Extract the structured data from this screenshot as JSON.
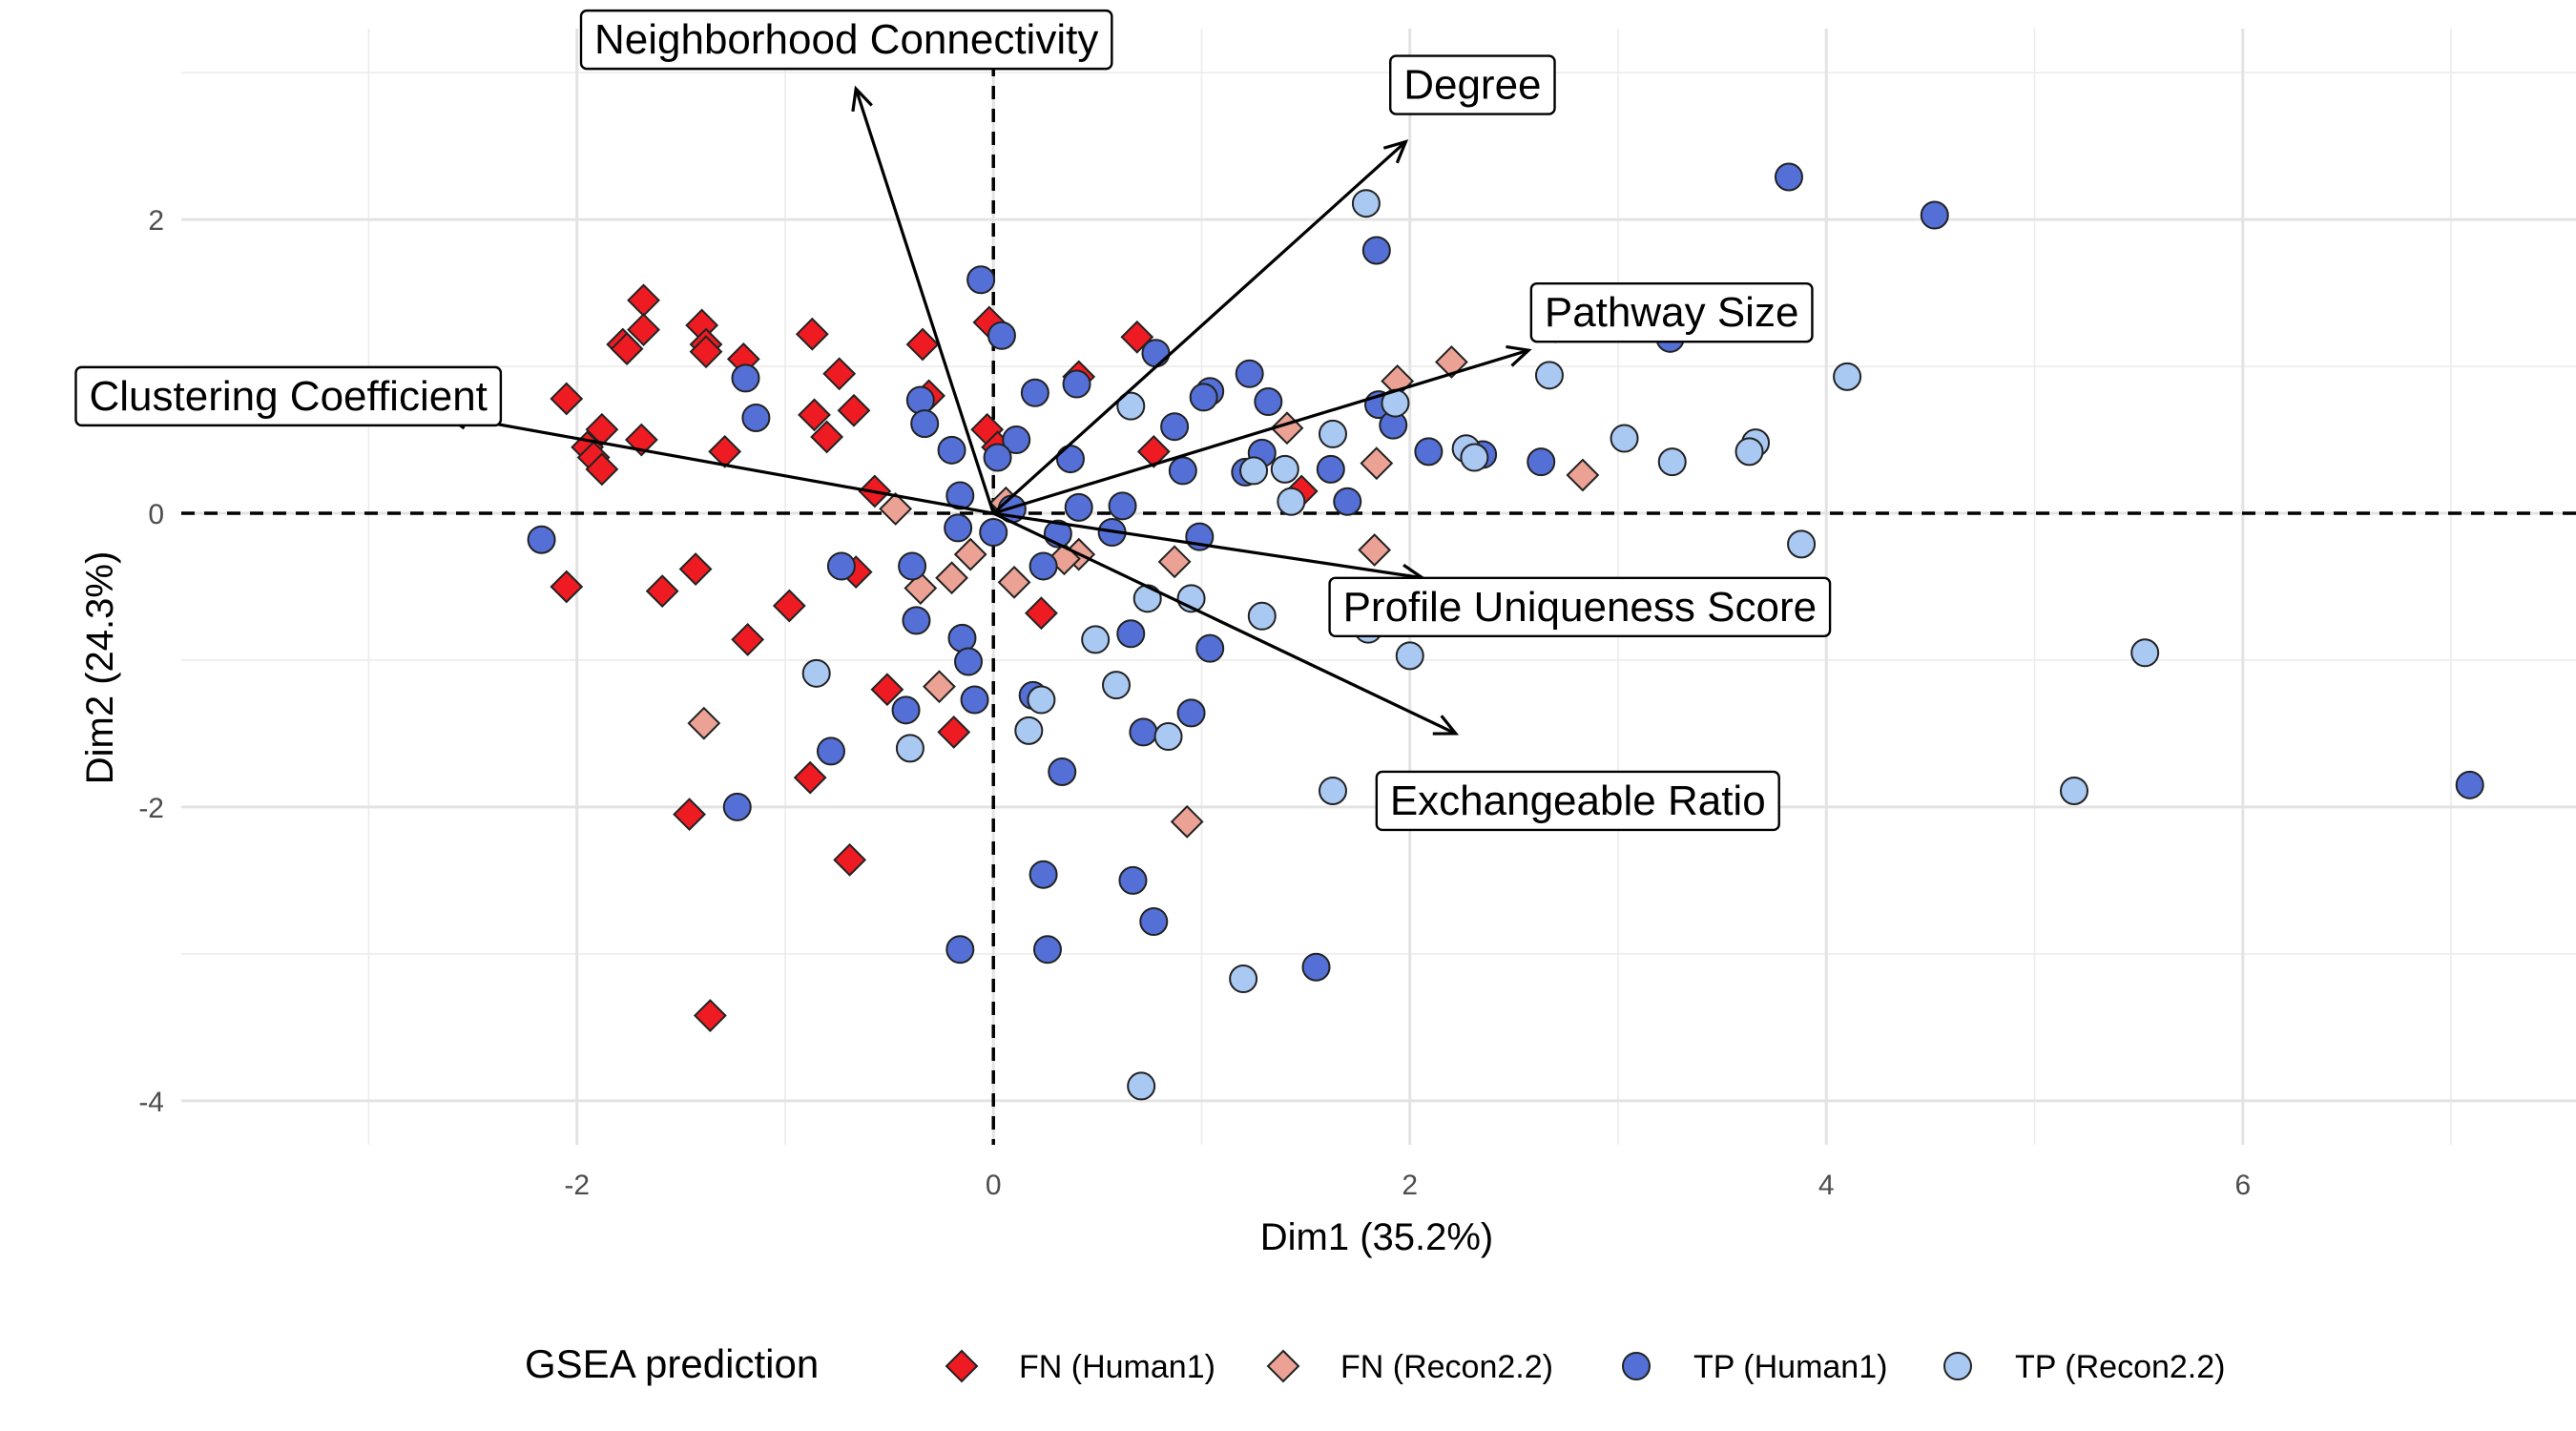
{
  "chart_data": {
    "type": "scatter",
    "xlabel": "Dim1 (35.2%)",
    "ylabel": "Dim2 (24.3%)",
    "xlim": [
      -3.9,
      7.6
    ],
    "ylim": [
      -4.3,
      3.3
    ],
    "x_ticks": [
      -2,
      0,
      2,
      4,
      6
    ],
    "y_ticks": [
      -4,
      -2,
      0,
      2
    ],
    "grid": true,
    "legend_position": "bottom",
    "legend_title": "GSEA prediction",
    "colors": {
      "FN (Human1)": "#ee1c22",
      "FN (Recon2.2)": "#eba294",
      "TP (Human1)": "#5470d6",
      "TP (Recon2.2)": "#a9c8f2"
    },
    "series": [
      {
        "name": "FN (Human1)",
        "shape": "diamond",
        "color": "#ee1c22",
        "points": [
          [
            -1.68,
            1.45
          ],
          [
            -1.4,
            1.28
          ],
          [
            -1.68,
            1.25
          ],
          [
            -1.78,
            1.15
          ],
          [
            -1.76,
            1.12
          ],
          [
            -1.38,
            1.15
          ],
          [
            -1.38,
            1.1
          ],
          [
            -1.2,
            1.05
          ],
          [
            -0.87,
            1.22
          ],
          [
            -0.74,
            0.95
          ],
          [
            -0.34,
            1.15
          ],
          [
            -0.02,
            1.3
          ],
          [
            0.41,
            0.93
          ],
          [
            0.69,
            1.2
          ],
          [
            -2.05,
            0.78
          ],
          [
            -1.88,
            0.57
          ],
          [
            -1.95,
            0.45
          ],
          [
            -1.92,
            0.38
          ],
          [
            -1.88,
            0.3
          ],
          [
            -1.69,
            0.5
          ],
          [
            -1.29,
            0.42
          ],
          [
            -0.86,
            0.67
          ],
          [
            -0.8,
            0.52
          ],
          [
            -0.67,
            0.7
          ],
          [
            -0.31,
            0.8
          ],
          [
            -0.03,
            0.57
          ],
          [
            0.02,
            0.45
          ],
          [
            0.77,
            0.42
          ],
          [
            -0.57,
            0.15
          ],
          [
            1.48,
            0.15
          ],
          [
            -2.05,
            -0.5
          ],
          [
            -1.59,
            -0.53
          ],
          [
            -1.43,
            -0.38
          ],
          [
            -1.18,
            -0.86
          ],
          [
            -0.98,
            -0.63
          ],
          [
            -0.66,
            -0.4
          ],
          [
            -0.51,
            -1.2
          ],
          [
            0.23,
            -0.68
          ],
          [
            -0.19,
            -1.49
          ],
          [
            -0.88,
            -1.8
          ],
          [
            -1.46,
            -2.05
          ],
          [
            -0.69,
            -2.36
          ],
          [
            -1.36,
            -3.42
          ]
        ]
      },
      {
        "name": "FN (Recon2.2)",
        "shape": "diamond",
        "color": "#eba294",
        "points": [
          [
            2.7,
            1.27
          ],
          [
            2.2,
            1.03
          ],
          [
            1.94,
            0.9
          ],
          [
            1.41,
            0.58
          ],
          [
            1.84,
            0.34
          ],
          [
            2.83,
            0.26
          ],
          [
            -0.47,
            0.03
          ],
          [
            0.06,
            0.07
          ],
          [
            -0.11,
            -0.28
          ],
          [
            -0.2,
            -0.44
          ],
          [
            -0.35,
            -0.51
          ],
          [
            0.1,
            -0.47
          ],
          [
            0.41,
            -0.28
          ],
          [
            0.34,
            -0.31
          ],
          [
            0.87,
            -0.33
          ],
          [
            1.83,
            -0.25
          ],
          [
            -0.26,
            -1.18
          ],
          [
            -1.39,
            -1.43
          ],
          [
            0.93,
            -2.1
          ]
        ]
      },
      {
        "name": "TP (Human1)",
        "shape": "circle",
        "color": "#5470d6",
        "points": [
          [
            3.82,
            2.29
          ],
          [
            4.52,
            2.03
          ],
          [
            1.84,
            1.79
          ],
          [
            -0.06,
            1.59
          ],
          [
            0.04,
            1.21
          ],
          [
            0.78,
            1.09
          ],
          [
            3.25,
            1.19
          ],
          [
            -1.19,
            0.92
          ],
          [
            0.4,
            0.88
          ],
          [
            1.04,
            0.83
          ],
          [
            1.23,
            0.95
          ],
          [
            1.32,
            0.76
          ],
          [
            0.2,
            0.82
          ],
          [
            1.85,
            0.74
          ],
          [
            1.92,
            0.6
          ],
          [
            1.01,
            0.79
          ],
          [
            -0.35,
            0.77
          ],
          [
            -1.14,
            0.65
          ],
          [
            -0.33,
            0.61
          ],
          [
            0.87,
            0.59
          ],
          [
            0.11,
            0.5
          ],
          [
            -0.2,
            0.43
          ],
          [
            0.37,
            0.37
          ],
          [
            2.09,
            0.42
          ],
          [
            2.35,
            0.4
          ],
          [
            2.63,
            0.35
          ],
          [
            0.91,
            0.29
          ],
          [
            1.29,
            0.41
          ],
          [
            1.62,
            0.3
          ],
          [
            1.21,
            0.28
          ],
          [
            0.02,
            0.38
          ],
          [
            1.7,
            0.08
          ],
          [
            -0.16,
            0.12
          ],
          [
            0.09,
            0.03
          ],
          [
            0.41,
            0.04
          ],
          [
            0.62,
            0.05
          ],
          [
            -0.17,
            -0.1
          ],
          [
            0.0,
            -0.13
          ],
          [
            0.31,
            -0.14
          ],
          [
            0.57,
            -0.13
          ],
          [
            0.99,
            -0.16
          ],
          [
            -2.17,
            -0.18
          ],
          [
            -0.73,
            -0.36
          ],
          [
            -0.39,
            -0.36
          ],
          [
            0.24,
            -0.36
          ],
          [
            -0.37,
            -0.73
          ],
          [
            0.66,
            -0.82
          ],
          [
            -0.15,
            -0.85
          ],
          [
            1.04,
            -0.92
          ],
          [
            -0.12,
            -1.01
          ],
          [
            -0.42,
            -1.34
          ],
          [
            -0.09,
            -1.27
          ],
          [
            0.19,
            -1.24
          ],
          [
            0.95,
            -1.36
          ],
          [
            0.72,
            -1.49
          ],
          [
            -0.78,
            -1.62
          ],
          [
            0.33,
            -1.76
          ],
          [
            -1.23,
            -2.0
          ],
          [
            0.24,
            -2.46
          ],
          [
            0.67,
            -2.5
          ],
          [
            0.77,
            -2.78
          ],
          [
            1.55,
            -3.09
          ],
          [
            -0.16,
            -2.97
          ],
          [
            0.26,
            -2.97
          ],
          [
            7.09,
            -1.85
          ]
        ]
      },
      {
        "name": "TP (Recon2.2)",
        "shape": "circle",
        "color": "#a9c8f2",
        "points": [
          [
            1.79,
            2.11
          ],
          [
            4.1,
            0.93
          ],
          [
            2.67,
            0.94
          ],
          [
            0.66,
            0.73
          ],
          [
            1.63,
            0.54
          ],
          [
            1.93,
            0.75
          ],
          [
            3.03,
            0.51
          ],
          [
            3.66,
            0.48
          ],
          [
            3.63,
            0.42
          ],
          [
            2.27,
            0.44
          ],
          [
            2.31,
            0.38
          ],
          [
            3.26,
            0.35
          ],
          [
            1.4,
            0.3
          ],
          [
            1.25,
            0.29
          ],
          [
            1.43,
            0.08
          ],
          [
            3.88,
            -0.21
          ],
          [
            3.52,
            -0.71
          ],
          [
            0.74,
            -0.58
          ],
          [
            0.95,
            -0.58
          ],
          [
            1.29,
            -0.7
          ],
          [
            1.8,
            -0.79
          ],
          [
            2.0,
            -0.97
          ],
          [
            0.49,
            -0.86
          ],
          [
            -0.85,
            -1.09
          ],
          [
            0.59,
            -1.17
          ],
          [
            0.23,
            -1.27
          ],
          [
            0.17,
            -1.48
          ],
          [
            0.84,
            -1.52
          ],
          [
            -0.4,
            -1.6
          ],
          [
            1.63,
            -1.89
          ],
          [
            2.9,
            -1.98
          ],
          [
            5.53,
            -0.95
          ],
          [
            5.19,
            -1.89
          ],
          [
            1.2,
            -3.17
          ],
          [
            0.71,
            -3.9
          ]
        ]
      }
    ],
    "arrows": [
      {
        "label": "Neighborhood Connectivity",
        "x": -0.66,
        "y": 2.89
      },
      {
        "label": "Degree",
        "x": 1.98,
        "y": 2.53
      },
      {
        "label": "Pathway Size",
        "x": 2.57,
        "y": 1.11
      },
      {
        "label": "Clustering Coefficient",
        "x": -2.63,
        "y": 0.67
      },
      {
        "label": "Profile Uniqueness Score",
        "x": 2.06,
        "y": -0.44
      },
      {
        "label": "Exchangeable Ratio",
        "x": 2.22,
        "y": -1.5
      }
    ]
  }
}
